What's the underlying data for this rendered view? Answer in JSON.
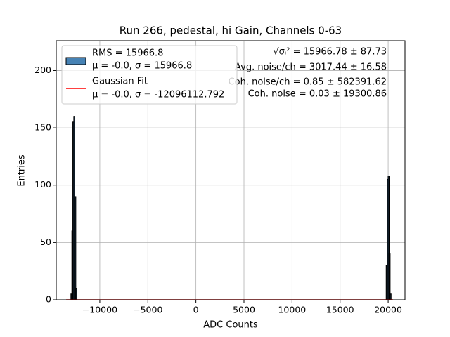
{
  "chart_data": {
    "type": "histogram",
    "title": "Run 266, pedestal, hi Gain, Channels 0-63",
    "xlabel": "ADC Counts",
    "ylabel": "Entries",
    "bins": [
      -13000,
      -12900,
      -12800,
      -12700,
      -12600,
      -12500,
      -12400,
      19800,
      19900,
      20000,
      20100,
      20200,
      20300
    ],
    "counts": [
      5,
      60,
      155,
      160,
      90,
      10,
      0,
      30,
      105,
      108,
      40,
      5
    ],
    "name": "RMS = 15966.8",
    "stats": "μ = -0.0, σ = 15966.8",
    "color": "#4682b4",
    "edgecolor": "#000000",
    "fit": {
      "name": "Gaussian Fit",
      "stats": "μ = -0.0, σ = -12096112.792",
      "color": "#ff0000",
      "x": [
        -13500,
        20500
      ],
      "values": [
        0,
        0
      ]
    },
    "annotations": [
      "√σᵢ² = 15966.78 ± 87.73",
      "Avg. noise/ch = 3017.44 ± 16.58",
      "Coh. noise/ch = 0.85 ± 582391.62",
      "Coh. noise = 0.03 ± 19300.86"
    ],
    "xlim": [
      -14530,
      21750
    ],
    "ylim": [
      0,
      226
    ],
    "xticks": [
      {
        "value": -10000,
        "label": "−10000"
      },
      {
        "value": -5000,
        "label": "−5000"
      },
      0,
      5000,
      10000,
      15000,
      20000
    ],
    "yticks": [
      0,
      50,
      100,
      150,
      200
    ],
    "grid": true,
    "legend": "upper left"
  }
}
